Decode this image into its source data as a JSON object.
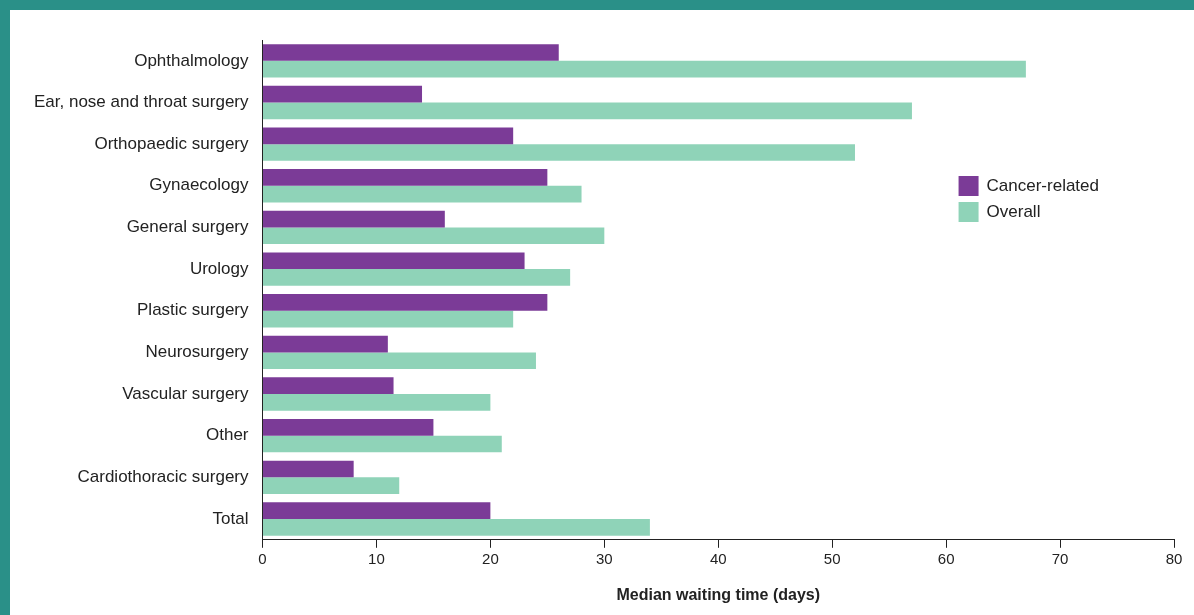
{
  "chart_data": {
    "type": "bar",
    "orientation": "horizontal",
    "xlabel": "Median waiting time (days)",
    "categories": [
      "Ophthalmology",
      "Ear, nose and throat surgery",
      "Orthopaedic surgery",
      "Gynaecology",
      "General surgery",
      "Urology",
      "Plastic surgery",
      "Neurosurgery",
      "Vascular surgery",
      "Other",
      "Cardiothoracic surgery",
      "Total"
    ],
    "series": [
      {
        "name": "Cancer-related",
        "color": "#7b3b97",
        "values": [
          26,
          14,
          22,
          25,
          16,
          23,
          25,
          11,
          11.5,
          15,
          8,
          20
        ]
      },
      {
        "name": "Overall",
        "color": "#8fd3b8",
        "values": [
          67,
          57,
          52,
          28,
          30,
          27,
          22,
          24,
          20,
          21,
          12,
          34
        ]
      }
    ],
    "xlim": [
      0,
      80
    ],
    "xticks": [
      0,
      10,
      20,
      30,
      40,
      50,
      60,
      70,
      80
    ],
    "grid": false,
    "legend": "right"
  }
}
